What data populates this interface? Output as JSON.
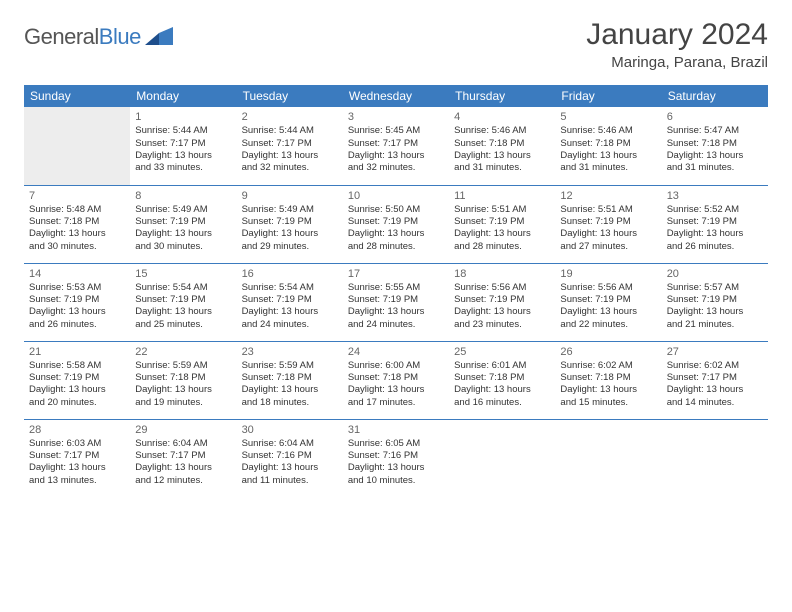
{
  "logo": {
    "text1": "General",
    "text2": "Blue"
  },
  "title": "January 2024",
  "location": "Maringa, Parana, Brazil",
  "colors": {
    "header_bg": "#3b7bbf",
    "header_text": "#ffffff",
    "grid_line": "#3b7bbf",
    "empty_bg": "#ededed",
    "text": "#333333",
    "daynum": "#666666",
    "page_bg": "#ffffff"
  },
  "weekdays": [
    "Sunday",
    "Monday",
    "Tuesday",
    "Wednesday",
    "Thursday",
    "Friday",
    "Saturday"
  ],
  "weeks": [
    [
      {
        "day": "",
        "sunrise": "",
        "sunset": "",
        "daylight1": "",
        "daylight2": ""
      },
      {
        "day": "1",
        "sunrise": "Sunrise: 5:44 AM",
        "sunset": "Sunset: 7:17 PM",
        "daylight1": "Daylight: 13 hours",
        "daylight2": "and 33 minutes."
      },
      {
        "day": "2",
        "sunrise": "Sunrise: 5:44 AM",
        "sunset": "Sunset: 7:17 PM",
        "daylight1": "Daylight: 13 hours",
        "daylight2": "and 32 minutes."
      },
      {
        "day": "3",
        "sunrise": "Sunrise: 5:45 AM",
        "sunset": "Sunset: 7:17 PM",
        "daylight1": "Daylight: 13 hours",
        "daylight2": "and 32 minutes."
      },
      {
        "day": "4",
        "sunrise": "Sunrise: 5:46 AM",
        "sunset": "Sunset: 7:18 PM",
        "daylight1": "Daylight: 13 hours",
        "daylight2": "and 31 minutes."
      },
      {
        "day": "5",
        "sunrise": "Sunrise: 5:46 AM",
        "sunset": "Sunset: 7:18 PM",
        "daylight1": "Daylight: 13 hours",
        "daylight2": "and 31 minutes."
      },
      {
        "day": "6",
        "sunrise": "Sunrise: 5:47 AM",
        "sunset": "Sunset: 7:18 PM",
        "daylight1": "Daylight: 13 hours",
        "daylight2": "and 31 minutes."
      }
    ],
    [
      {
        "day": "7",
        "sunrise": "Sunrise: 5:48 AM",
        "sunset": "Sunset: 7:18 PM",
        "daylight1": "Daylight: 13 hours",
        "daylight2": "and 30 minutes."
      },
      {
        "day": "8",
        "sunrise": "Sunrise: 5:49 AM",
        "sunset": "Sunset: 7:19 PM",
        "daylight1": "Daylight: 13 hours",
        "daylight2": "and 30 minutes."
      },
      {
        "day": "9",
        "sunrise": "Sunrise: 5:49 AM",
        "sunset": "Sunset: 7:19 PM",
        "daylight1": "Daylight: 13 hours",
        "daylight2": "and 29 minutes."
      },
      {
        "day": "10",
        "sunrise": "Sunrise: 5:50 AM",
        "sunset": "Sunset: 7:19 PM",
        "daylight1": "Daylight: 13 hours",
        "daylight2": "and 28 minutes."
      },
      {
        "day": "11",
        "sunrise": "Sunrise: 5:51 AM",
        "sunset": "Sunset: 7:19 PM",
        "daylight1": "Daylight: 13 hours",
        "daylight2": "and 28 minutes."
      },
      {
        "day": "12",
        "sunrise": "Sunrise: 5:51 AM",
        "sunset": "Sunset: 7:19 PM",
        "daylight1": "Daylight: 13 hours",
        "daylight2": "and 27 minutes."
      },
      {
        "day": "13",
        "sunrise": "Sunrise: 5:52 AM",
        "sunset": "Sunset: 7:19 PM",
        "daylight1": "Daylight: 13 hours",
        "daylight2": "and 26 minutes."
      }
    ],
    [
      {
        "day": "14",
        "sunrise": "Sunrise: 5:53 AM",
        "sunset": "Sunset: 7:19 PM",
        "daylight1": "Daylight: 13 hours",
        "daylight2": "and 26 minutes."
      },
      {
        "day": "15",
        "sunrise": "Sunrise: 5:54 AM",
        "sunset": "Sunset: 7:19 PM",
        "daylight1": "Daylight: 13 hours",
        "daylight2": "and 25 minutes."
      },
      {
        "day": "16",
        "sunrise": "Sunrise: 5:54 AM",
        "sunset": "Sunset: 7:19 PM",
        "daylight1": "Daylight: 13 hours",
        "daylight2": "and 24 minutes."
      },
      {
        "day": "17",
        "sunrise": "Sunrise: 5:55 AM",
        "sunset": "Sunset: 7:19 PM",
        "daylight1": "Daylight: 13 hours",
        "daylight2": "and 24 minutes."
      },
      {
        "day": "18",
        "sunrise": "Sunrise: 5:56 AM",
        "sunset": "Sunset: 7:19 PM",
        "daylight1": "Daylight: 13 hours",
        "daylight2": "and 23 minutes."
      },
      {
        "day": "19",
        "sunrise": "Sunrise: 5:56 AM",
        "sunset": "Sunset: 7:19 PM",
        "daylight1": "Daylight: 13 hours",
        "daylight2": "and 22 minutes."
      },
      {
        "day": "20",
        "sunrise": "Sunrise: 5:57 AM",
        "sunset": "Sunset: 7:19 PM",
        "daylight1": "Daylight: 13 hours",
        "daylight2": "and 21 minutes."
      }
    ],
    [
      {
        "day": "21",
        "sunrise": "Sunrise: 5:58 AM",
        "sunset": "Sunset: 7:19 PM",
        "daylight1": "Daylight: 13 hours",
        "daylight2": "and 20 minutes."
      },
      {
        "day": "22",
        "sunrise": "Sunrise: 5:59 AM",
        "sunset": "Sunset: 7:18 PM",
        "daylight1": "Daylight: 13 hours",
        "daylight2": "and 19 minutes."
      },
      {
        "day": "23",
        "sunrise": "Sunrise: 5:59 AM",
        "sunset": "Sunset: 7:18 PM",
        "daylight1": "Daylight: 13 hours",
        "daylight2": "and 18 minutes."
      },
      {
        "day": "24",
        "sunrise": "Sunrise: 6:00 AM",
        "sunset": "Sunset: 7:18 PM",
        "daylight1": "Daylight: 13 hours",
        "daylight2": "and 17 minutes."
      },
      {
        "day": "25",
        "sunrise": "Sunrise: 6:01 AM",
        "sunset": "Sunset: 7:18 PM",
        "daylight1": "Daylight: 13 hours",
        "daylight2": "and 16 minutes."
      },
      {
        "day": "26",
        "sunrise": "Sunrise: 6:02 AM",
        "sunset": "Sunset: 7:18 PM",
        "daylight1": "Daylight: 13 hours",
        "daylight2": "and 15 minutes."
      },
      {
        "day": "27",
        "sunrise": "Sunrise: 6:02 AM",
        "sunset": "Sunset: 7:17 PM",
        "daylight1": "Daylight: 13 hours",
        "daylight2": "and 14 minutes."
      }
    ],
    [
      {
        "day": "28",
        "sunrise": "Sunrise: 6:03 AM",
        "sunset": "Sunset: 7:17 PM",
        "daylight1": "Daylight: 13 hours",
        "daylight2": "and 13 minutes."
      },
      {
        "day": "29",
        "sunrise": "Sunrise: 6:04 AM",
        "sunset": "Sunset: 7:17 PM",
        "daylight1": "Daylight: 13 hours",
        "daylight2": "and 12 minutes."
      },
      {
        "day": "30",
        "sunrise": "Sunrise: 6:04 AM",
        "sunset": "Sunset: 7:16 PM",
        "daylight1": "Daylight: 13 hours",
        "daylight2": "and 11 minutes."
      },
      {
        "day": "31",
        "sunrise": "Sunrise: 6:05 AM",
        "sunset": "Sunset: 7:16 PM",
        "daylight1": "Daylight: 13 hours",
        "daylight2": "and 10 minutes."
      },
      {
        "day": "",
        "sunrise": "",
        "sunset": "",
        "daylight1": "",
        "daylight2": ""
      },
      {
        "day": "",
        "sunrise": "",
        "sunset": "",
        "daylight1": "",
        "daylight2": ""
      },
      {
        "day": "",
        "sunrise": "",
        "sunset": "",
        "daylight1": "",
        "daylight2": ""
      }
    ]
  ]
}
